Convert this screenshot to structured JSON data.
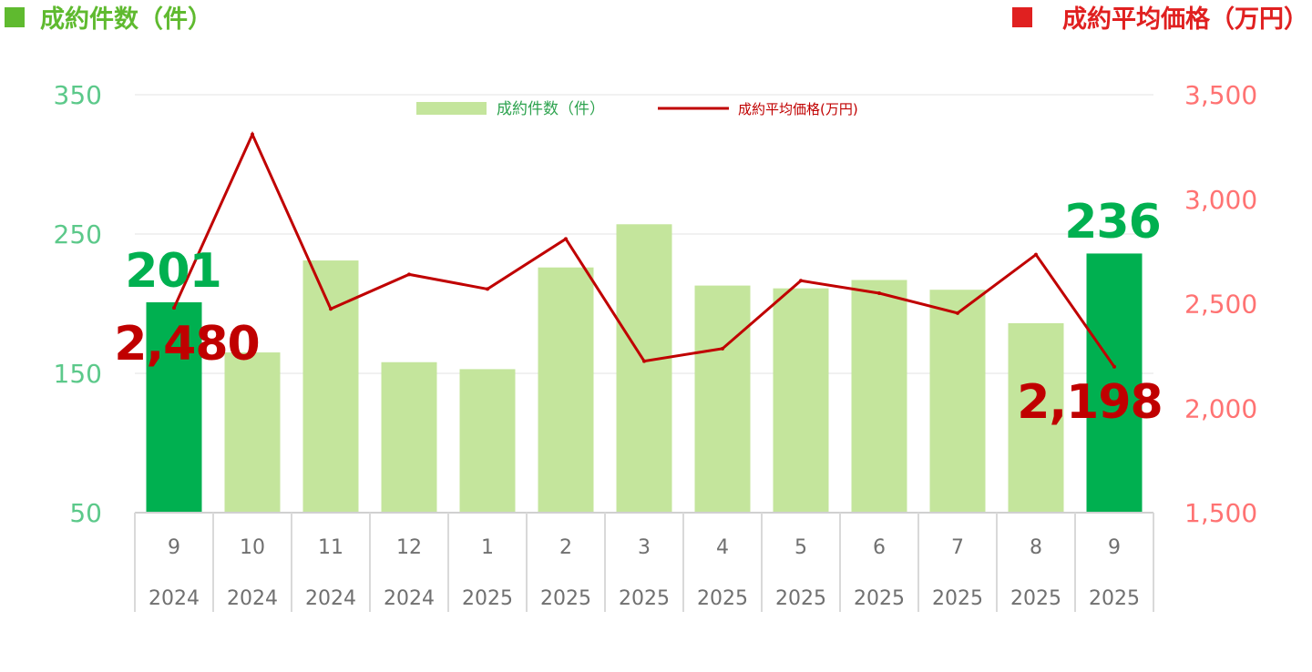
{
  "header": {
    "left_title": "成約件数（件）",
    "right_title": "成約平均価格（万円）"
  },
  "colors": {
    "bar_light": "#c4e59c",
    "bar_highlight": "#00b050",
    "line": "#c00000",
    "left_title": "#5fba2f",
    "right_title": "#e02020",
    "left_axis": "#5cc98a",
    "right_axis": "#ff7373",
    "grid": "#e3e3e3",
    "category_text": "#707070"
  },
  "chart_data": {
    "type": "bar",
    "categories": [
      "9",
      "10",
      "11",
      "12",
      "1",
      "2",
      "3",
      "4",
      "5",
      "6",
      "7",
      "8",
      "9"
    ],
    "category_years": [
      "2024",
      "2024",
      "2024",
      "2024",
      "2025",
      "2025",
      "2025",
      "2025",
      "2025",
      "2025",
      "2025",
      "2025",
      "2025"
    ],
    "left_axis": {
      "min": 50,
      "max": 350,
      "ticks": [
        "50",
        "150",
        "250",
        "350"
      ]
    },
    "right_axis": {
      "min": 1500,
      "max": 3500,
      "ticks": [
        "1,500",
        "2,000",
        "2,500",
        "3,000",
        "3,500"
      ]
    },
    "grid": true,
    "legend": {
      "placement": "top-center",
      "bar_label": "成約件数（件）",
      "line_label": "成約平均価格(万円)"
    },
    "series": [
      {
        "name": "成約件数（件）",
        "type": "bar",
        "axis": "left",
        "values": [
          201,
          165,
          231,
          158,
          153,
          226,
          257,
          213,
          211,
          217,
          210,
          186,
          236
        ],
        "highlight": [
          0,
          12
        ]
      },
      {
        "name": "成約平均価格(万円)",
        "type": "line",
        "axis": "right",
        "values": [
          2480,
          3310,
          2475,
          2640,
          2570,
          2810,
          2225,
          2285,
          2610,
          2550,
          2455,
          2735,
          2198
        ]
      }
    ],
    "annotations": [
      {
        "text": "201",
        "series": 0,
        "index": 0
      },
      {
        "text": "2,480",
        "series": 1,
        "index": 0
      },
      {
        "text": "236",
        "series": 0,
        "index": 12
      },
      {
        "text": "2,198",
        "series": 1,
        "index": 12
      }
    ]
  }
}
